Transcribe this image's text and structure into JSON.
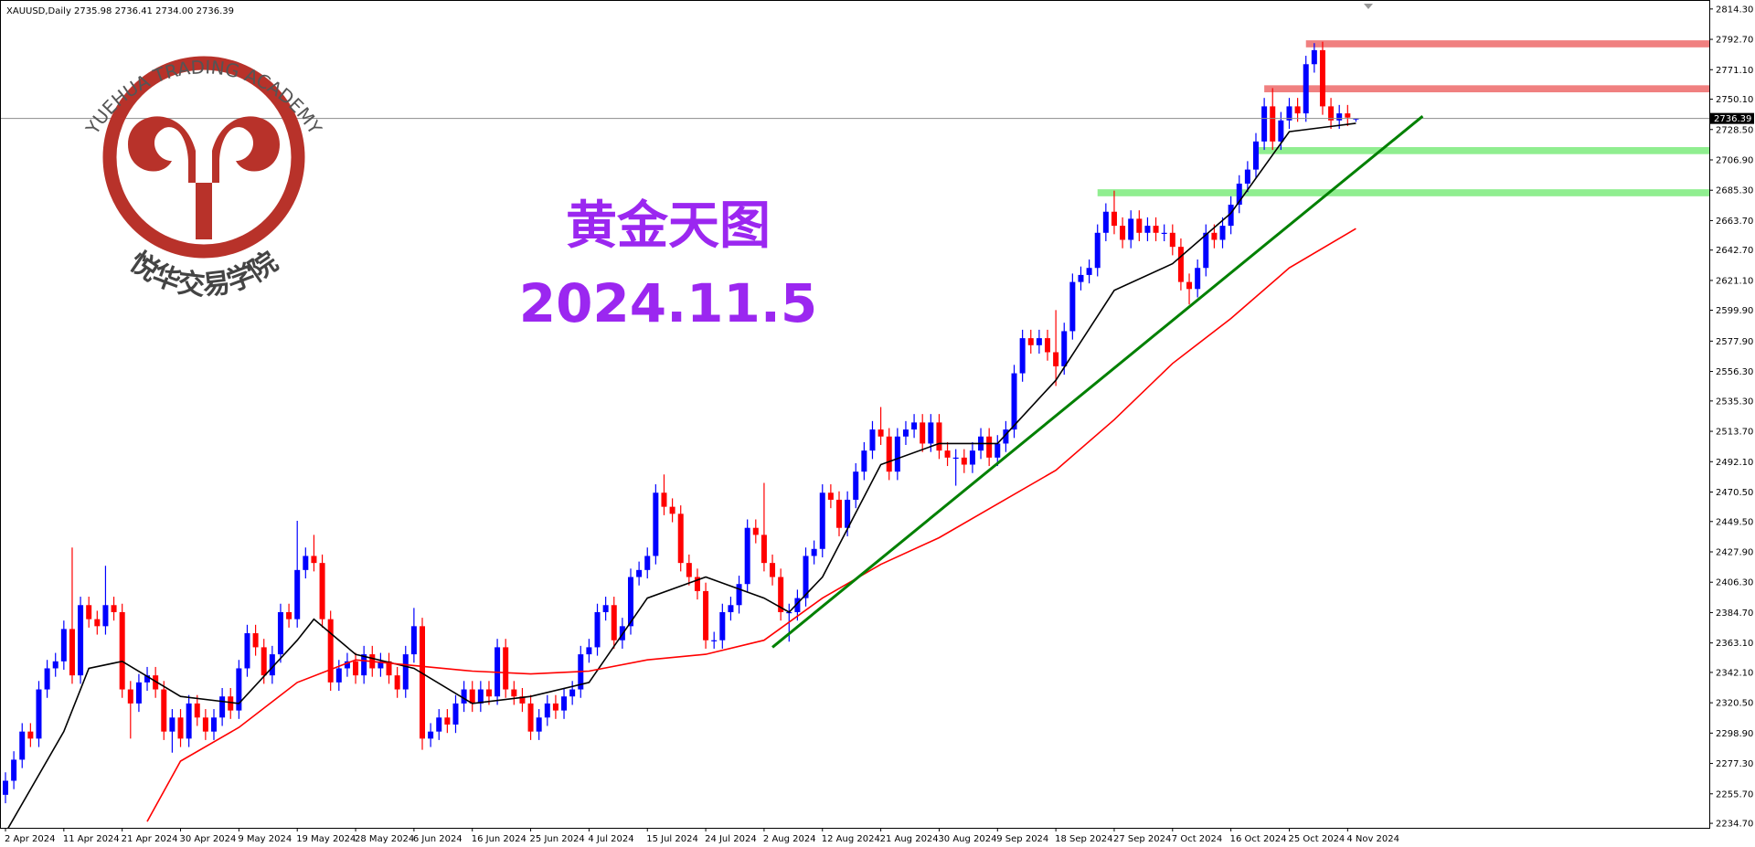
{
  "logo": {
    "name": "YUEHUA TRADING ACADEMY",
    "chinese": "悦华交易学院"
  },
  "chart_data": {
    "type": "candlestick",
    "header": "XAUUSD,Daily  2735.98 2736.41 2734.00 2736.39",
    "title": "黄金天图",
    "subtitle": "2024.11.5",
    "up_color": "#0000ff",
    "down_color": "#ff0000",
    "categories": [
      "2 Apr 2024",
      null,
      null,
      null,
      null,
      null,
      null,
      "11 Apr 2024",
      null,
      null,
      null,
      null,
      null,
      null,
      "21 Apr 2024",
      null,
      null,
      null,
      null,
      null,
      null,
      "30 Apr 2024",
      null,
      null,
      null,
      null,
      null,
      null,
      "9 May 2024",
      null,
      null,
      null,
      null,
      null,
      null,
      "19 May 2024",
      null,
      null,
      null,
      null,
      null,
      null,
      "28 May 2024",
      null,
      null,
      null,
      null,
      null,
      null,
      "6 Jun 2024",
      null,
      null,
      null,
      null,
      null,
      null,
      "16 Jun 2024",
      null,
      null,
      null,
      null,
      null,
      null,
      "25 Jun 2024",
      null,
      null,
      null,
      null,
      null,
      null,
      "4 Jul 2024",
      null,
      null,
      null,
      null,
      null,
      null,
      "15 Jul 2024",
      null,
      null,
      null,
      null,
      null,
      null,
      "24 Jul 2024",
      null,
      null,
      null,
      null,
      null,
      null,
      "2 Aug 2024",
      null,
      null,
      null,
      null,
      null,
      null,
      "12 Aug 2024",
      null,
      null,
      null,
      null,
      null,
      null,
      "21 Aug 2024",
      null,
      null,
      null,
      null,
      null,
      null,
      "30 Aug 2024",
      null,
      null,
      null,
      null,
      null,
      null,
      "9 Sep 2024",
      null,
      null,
      null,
      null,
      null,
      null,
      "18 Sep 2024",
      null,
      null,
      null,
      null,
      null,
      null,
      "27 Sep 2024",
      null,
      null,
      null,
      null,
      null,
      null,
      "7 Oct 2024",
      null,
      null,
      null,
      null,
      null,
      null,
      "16 Oct 2024",
      null,
      null,
      null,
      null,
      null,
      null,
      "25 Oct 2024",
      null,
      null,
      null,
      null,
      null,
      null,
      "4 Nov 2024",
      null
    ],
    "open": [
      2255,
      2265,
      2280,
      2300,
      2295,
      2330,
      2345,
      2350,
      2373,
      2340,
      2390,
      2380,
      2375,
      2390,
      2385,
      2330,
      2320,
      2335,
      2340,
      2330,
      2300,
      2310,
      2295,
      2320,
      2310,
      2300,
      2310,
      2325,
      2315,
      2345,
      2370,
      2360,
      2340,
      2355,
      2385,
      2380,
      2415,
      2425,
      2420,
      2380,
      2335,
      2345,
      2350,
      2340,
      2355,
      2345,
      2350,
      2340,
      2330,
      2355,
      2375,
      2295,
      2300,
      2310,
      2305,
      2320,
      2330,
      2320,
      2330,
      2325,
      2360,
      2330,
      2325,
      2320,
      2300,
      2310,
      2320,
      2315,
      2325,
      2330,
      2355,
      2360,
      2385,
      2390,
      2365,
      2375,
      2410,
      2415,
      2425,
      2470,
      2460,
      2455,
      2420,
      2410,
      2400,
      2365,
      2365,
      2385,
      2390,
      2405,
      2445,
      2440,
      2420,
      2410,
      2385,
      2385,
      2395,
      2425,
      2430,
      2470,
      2465,
      2445,
      2465,
      2485,
      2500,
      2515,
      2510,
      2485,
      2510,
      2515,
      2520,
      2505,
      2520,
      2500,
      2495,
      2495,
      2490,
      2500,
      2510,
      2495,
      2505,
      2515,
      2555,
      2580,
      2575,
      2580,
      2570,
      2560,
      2585,
      2620,
      2625,
      2630,
      2655,
      2670,
      2660,
      2650,
      2665,
      2655,
      2660,
      2655,
      2655,
      2645,
      2620,
      2615,
      2630,
      2655,
      2650,
      2660,
      2675,
      2690,
      2700,
      2720,
      2745,
      2720,
      2735,
      2745,
      2740,
      2775,
      2785,
      2745,
      2735,
      2740,
      2735.98
    ],
    "high": [
      2271,
      2286,
      2306,
      2306,
      2336,
      2351,
      2356,
      2379,
      2431,
      2396,
      2396,
      2386,
      2418,
      2396,
      2391,
      2336,
      2341,
      2346,
      2346,
      2336,
      2316,
      2316,
      2326,
      2326,
      2316,
      2316,
      2331,
      2331,
      2351,
      2376,
      2376,
      2366,
      2361,
      2391,
      2391,
      2450,
      2431,
      2440,
      2426,
      2386,
      2351,
      2356,
      2356,
      2361,
      2361,
      2356,
      2356,
      2346,
      2361,
      2388,
      2381,
      2306,
      2316,
      2316,
      2326,
      2336,
      2336,
      2336,
      2336,
      2366,
      2366,
      2336,
      2331,
      2326,
      2316,
      2326,
      2326,
      2331,
      2336,
      2361,
      2366,
      2391,
      2396,
      2396,
      2381,
      2416,
      2421,
      2431,
      2476,
      2483,
      2466,
      2461,
      2426,
      2416,
      2406,
      2371,
      2391,
      2396,
      2411,
      2451,
      2451,
      2477,
      2426,
      2416,
      2391,
      2401,
      2431,
      2436,
      2476,
      2476,
      2471,
      2471,
      2491,
      2506,
      2521,
      2531,
      2516,
      2516,
      2521,
      2526,
      2526,
      2526,
      2526,
      2506,
      2501,
      2501,
      2506,
      2516,
      2516,
      2511,
      2521,
      2561,
      2586,
      2586,
      2586,
      2586,
      2600,
      2591,
      2626,
      2631,
      2636,
      2661,
      2676,
      2685,
      2666,
      2671,
      2671,
      2666,
      2666,
      2661,
      2661,
      2651,
      2626,
      2636,
      2661,
      2661,
      2666,
      2681,
      2696,
      2706,
      2726,
      2751,
      2758,
      2741,
      2751,
      2751,
      2781,
      2790,
      2791,
      2751,
      2746,
      2746,
      2736.41
    ],
    "low": [
      2249,
      2259,
      2274,
      2289,
      2289,
      2324,
      2339,
      2344,
      2334,
      2334,
      2374,
      2369,
      2369,
      2379,
      2324,
      2295,
      2314,
      2329,
      2324,
      2294,
      2285,
      2289,
      2289,
      2304,
      2294,
      2294,
      2304,
      2309,
      2309,
      2339,
      2354,
      2334,
      2334,
      2349,
      2374,
      2374,
      2409,
      2414,
      2374,
      2329,
      2329,
      2339,
      2334,
      2334,
      2339,
      2339,
      2334,
      2324,
      2324,
      2349,
      2287,
      2289,
      2294,
      2299,
      2299,
      2314,
      2314,
      2314,
      2319,
      2319,
      2324,
      2319,
      2314,
      2294,
      2294,
      2304,
      2309,
      2309,
      2319,
      2324,
      2349,
      2354,
      2379,
      2359,
      2359,
      2369,
      2404,
      2409,
      2419,
      2454,
      2449,
      2414,
      2404,
      2394,
      2359,
      2359,
      2359,
      2379,
      2384,
      2399,
      2434,
      2414,
      2404,
      2379,
      2364,
      2379,
      2389,
      2419,
      2424,
      2459,
      2439,
      2439,
      2459,
      2479,
      2494,
      2504,
      2479,
      2479,
      2504,
      2509,
      2499,
      2499,
      2494,
      2489,
      2475,
      2484,
      2484,
      2494,
      2489,
      2489,
      2499,
      2509,
      2549,
      2569,
      2569,
      2564,
      2546,
      2554,
      2579,
      2614,
      2619,
      2624,
      2649,
      2654,
      2644,
      2644,
      2649,
      2649,
      2649,
      2649,
      2639,
      2614,
      2604,
      2609,
      2624,
      2644,
      2644,
      2654,
      2669,
      2684,
      2694,
      2714,
      2714,
      2714,
      2729,
      2734,
      2734,
      2769,
      2739,
      2729,
      2729,
      2731,
      2734
    ],
    "close": [
      2265,
      2280,
      2300,
      2295,
      2330,
      2345,
      2350,
      2373,
      2340,
      2390,
      2380,
      2375,
      2390,
      2385,
      2330,
      2320,
      2335,
      2340,
      2330,
      2300,
      2310,
      2295,
      2320,
      2310,
      2300,
      2310,
      2325,
      2315,
      2345,
      2370,
      2360,
      2340,
      2355,
      2385,
      2380,
      2415,
      2425,
      2420,
      2380,
      2335,
      2345,
      2350,
      2340,
      2355,
      2345,
      2350,
      2340,
      2330,
      2355,
      2375,
      2295,
      2300,
      2310,
      2305,
      2320,
      2330,
      2320,
      2330,
      2325,
      2360,
      2330,
      2325,
      2320,
      2300,
      2310,
      2320,
      2315,
      2325,
      2330,
      2355,
      2360,
      2385,
      2390,
      2365,
      2375,
      2410,
      2415,
      2425,
      2470,
      2460,
      2455,
      2420,
      2410,
      2400,
      2365,
      2365,
      2385,
      2390,
      2405,
      2445,
      2440,
      2420,
      2410,
      2385,
      2385,
      2395,
      2425,
      2430,
      2470,
      2465,
      2445,
      2465,
      2485,
      2500,
      2515,
      2510,
      2485,
      2510,
      2515,
      2520,
      2505,
      2520,
      2500,
      2495,
      2495,
      2490,
      2500,
      2510,
      2495,
      2505,
      2515,
      2555,
      2580,
      2575,
      2580,
      2570,
      2560,
      2585,
      2620,
      2625,
      2630,
      2655,
      2670,
      2660,
      2650,
      2665,
      2655,
      2660,
      2655,
      2655,
      2645,
      2620,
      2615,
      2630,
      2655,
      2650,
      2660,
      2675,
      2690,
      2700,
      2720,
      2745,
      2720,
      2735,
      2745,
      2740,
      2775,
      2785,
      2745,
      2735,
      2740,
      2737,
      2736.39
    ],
    "series": [
      {
        "color": "#000000",
        "x": [
          0,
          7,
          10,
          14,
          21,
          28,
          35,
          37,
          42,
          49,
          56,
          63,
          70,
          77,
          84,
          91,
          94,
          98,
          105,
          112,
          119,
          126,
          133,
          140,
          147,
          154,
          158,
          162
        ],
        "values": [
          2228,
          2300,
          2345,
          2350,
          2325,
          2320,
          2365,
          2380,
          2355,
          2345,
          2320,
          2325,
          2335,
          2395,
          2410,
          2395,
          2385,
          2410,
          2490,
          2505,
          2505,
          2550,
          2614,
          2633,
          2669,
          2727,
          2730,
          2733
        ]
      },
      {
        "color": "#ff0000",
        "x": [
          17,
          21,
          28,
          35,
          42,
          49,
          56,
          63,
          70,
          77,
          84,
          91,
          98,
          105,
          112,
          119,
          126,
          133,
          140,
          147,
          154,
          162
        ],
        "values": [
          2236,
          2279,
          2303,
          2335,
          2351,
          2347,
          2343,
          2341,
          2343,
          2351,
          2355,
          2365,
          2395,
          2419,
          2438,
          2462,
          2486,
          2522,
          2562,
          2594,
          2630,
          2658
        ]
      }
    ],
    "zones": [
      {
        "color": "#f08080",
        "from_x": 156,
        "values": [
          2787,
          2792
        ]
      },
      {
        "color": "#f08080",
        "from_x": 151,
        "values": [
          2755,
          2760
        ]
      },
      {
        "color": "#90ee90",
        "from_x": 150,
        "values": [
          2711,
          2716
        ]
      },
      {
        "color": "#90ee90",
        "from_x": 131,
        "values": [
          2681,
          2686
        ]
      }
    ],
    "trendline": {
      "color": "#008000",
      "x": [
        92,
        170
      ],
      "values": [
        2360,
        2738
      ]
    },
    "last_price": 2736.39,
    "ylim": [
      2231.5,
      2820.7
    ],
    "yticks": [
      {
        "value": 2814.3,
        "label": "2814.30"
      },
      {
        "value": 2792.7,
        "label": "2792.70"
      },
      {
        "value": 2771.1,
        "label": "2771.10"
      },
      {
        "value": 2750.1,
        "label": "2750.10"
      },
      {
        "value": 2728.5,
        "label": "2728.50"
      },
      {
        "value": 2706.9,
        "label": "2706.90"
      },
      {
        "value": 2685.3,
        "label": "2685.30"
      },
      {
        "value": 2663.7,
        "label": "2663.70"
      },
      {
        "value": 2642.7,
        "label": "2642.70"
      },
      {
        "value": 2621.1,
        "label": "2621.10"
      },
      {
        "value": 2599.9,
        "label": "2599.90"
      },
      {
        "value": 2577.9,
        "label": "2577.90"
      },
      {
        "value": 2556.3,
        "label": "2556.30"
      },
      {
        "value": 2535.3,
        "label": "2535.30"
      },
      {
        "value": 2513.7,
        "label": "2513.70"
      },
      {
        "value": 2492.1,
        "label": "2492.10"
      },
      {
        "value": 2470.5,
        "label": "2470.50"
      },
      {
        "value": 2449.5,
        "label": "2449.50"
      },
      {
        "value": 2427.9,
        "label": "2427.90"
      },
      {
        "value": 2406.3,
        "label": "2406.30"
      },
      {
        "value": 2384.7,
        "label": "2384.70"
      },
      {
        "value": 2363.1,
        "label": "2363.10"
      },
      {
        "value": 2342.1,
        "label": "2342.10"
      },
      {
        "value": 2320.5,
        "label": "2320.50"
      },
      {
        "value": 2298.9,
        "label": "2298.90"
      },
      {
        "value": 2277.3,
        "label": "2277.30"
      },
      {
        "value": 2255.7,
        "label": "2255.70"
      },
      {
        "value": 2234.7,
        "label": "2234.70"
      }
    ]
  }
}
